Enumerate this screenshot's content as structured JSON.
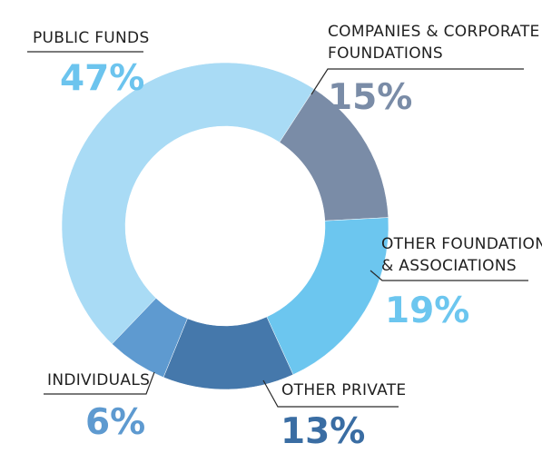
{
  "chart_data": {
    "type": "pie",
    "donut": true,
    "title": "",
    "slices": [
      {
        "name": "PUBLIC FUNDS",
        "value": 47,
        "value_label": "47%",
        "color": "#a9dbf5",
        "label_color": "#6cc4ee"
      },
      {
        "name": "COMPANIES & CORPORATE FOUNDATIONS",
        "value": 15,
        "value_label": "15%",
        "color": "#7a8ca7",
        "label_color": "#7a8ca7"
      },
      {
        "name": "OTHER FOUNDATIONS & ASSOCIATIONS",
        "value": 19,
        "value_label": "19%",
        "color": "#6cc6ef",
        "label_color": "#6cc6ef"
      },
      {
        "name": "OTHER PRIVATE",
        "value": 13,
        "value_label": "13%",
        "color": "#4578ab",
        "label_color": "#3a6da3"
      },
      {
        "name": "INDIVIDUALS",
        "value": 6,
        "value_label": "6%",
        "color": "#5e9ad0",
        "label_color": "#5e9ad0"
      }
    ],
    "labels": {
      "public_funds": {
        "line1": "PUBLIC FUNDS",
        "pct": "47%"
      },
      "companies": {
        "line1": "COMPANIES & CORPORATE",
        "line2": "FOUNDATIONS",
        "pct": "15%"
      },
      "other_foundations": {
        "line1": "OTHER FOUNDATIONS",
        "line2": "& ASSOCIATIONS",
        "pct": "19%"
      },
      "other_private": {
        "line1": "OTHER PRIVATE",
        "pct": "13%"
      },
      "individuals": {
        "line1": "INDIVIDUALS",
        "pct": "6%"
      }
    }
  }
}
